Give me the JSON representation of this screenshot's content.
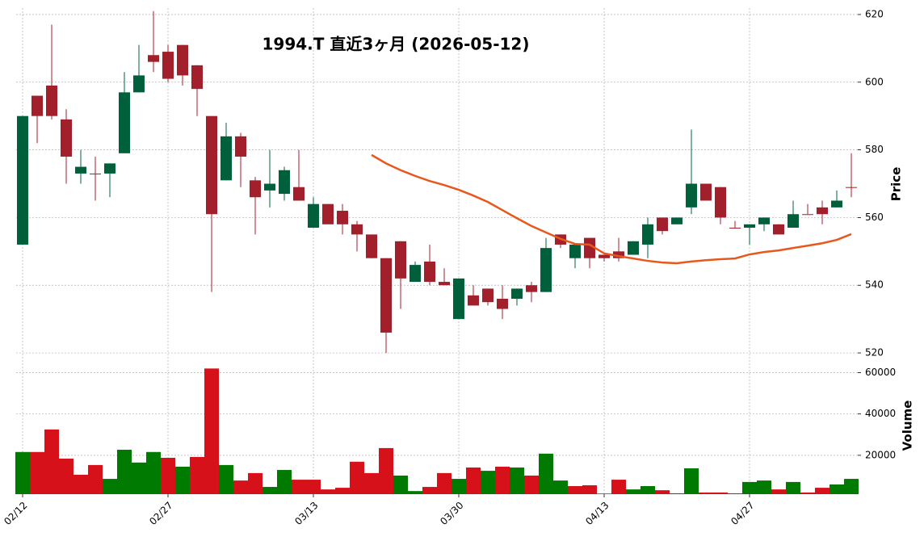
{
  "chart_data": [
    {
      "type": "candlestick",
      "title": "1994.T  直近3ヶ月  (2026-05-12)",
      "ylabel": "Price",
      "categories": [
        "02/12",
        null,
        null,
        null,
        null,
        null,
        null,
        null,
        null,
        null,
        "02/27",
        null,
        null,
        null,
        null,
        null,
        null,
        null,
        null,
        null,
        "03/13",
        null,
        null,
        null,
        null,
        null,
        null,
        null,
        null,
        null,
        "03/30",
        null,
        null,
        null,
        null,
        null,
        null,
        null,
        null,
        null,
        "04/13",
        null,
        null,
        null,
        null,
        null,
        null,
        null,
        null,
        null,
        "04/27",
        null,
        null,
        null,
        null,
        null,
        null,
        null
      ],
      "open": [
        552,
        596,
        599,
        589,
        573,
        573,
        573,
        579,
        597,
        608,
        609,
        611,
        605,
        590,
        571,
        584,
        571,
        568,
        567,
        569,
        557,
        564,
        562,
        558,
        555,
        548,
        553,
        541,
        547,
        541,
        530,
        537,
        539,
        536,
        536,
        540,
        538,
        555,
        548,
        554,
        549,
        550,
        549,
        552,
        560,
        558,
        563,
        570,
        569,
        557,
        557,
        558,
        558,
        557,
        561,
        563,
        563,
        569
      ],
      "high": [
        590,
        596,
        617,
        592,
        580,
        578,
        576,
        603,
        611,
        621,
        611,
        611,
        605,
        590,
        588,
        585,
        572,
        580,
        575,
        580,
        566,
        564,
        564,
        559,
        555,
        548,
        553,
        547,
        552,
        545,
        542,
        540,
        539,
        540,
        539,
        541,
        554,
        555,
        552,
        554,
        549,
        554,
        553,
        560,
        560,
        560,
        586,
        570,
        569,
        559,
        558,
        560,
        558,
        565,
        564,
        565,
        568,
        579
      ],
      "low": [
        552,
        582,
        589,
        570,
        570,
        565,
        566,
        579,
        597,
        603,
        600,
        599,
        590,
        538,
        571,
        569,
        555,
        563,
        565,
        565,
        557,
        558,
        555,
        550,
        548,
        520,
        533,
        541,
        540,
        540,
        530,
        534,
        534,
        530,
        534,
        535,
        538,
        551,
        545,
        545,
        547,
        547,
        549,
        548,
        555,
        558,
        561,
        565,
        558,
        557,
        552,
        556,
        555,
        557,
        561,
        558,
        563,
        566
      ],
      "close": [
        590,
        590,
        590,
        578,
        575,
        573,
        576,
        597,
        602,
        606,
        601,
        602,
        598,
        561,
        584,
        578,
        566,
        570,
        574,
        565,
        564,
        558,
        558,
        555,
        548,
        526,
        542,
        546,
        541,
        540,
        542,
        534,
        535,
        533,
        539,
        538,
        551,
        552,
        552,
        548,
        548,
        548,
        553,
        558,
        556,
        560,
        570,
        565,
        560,
        557,
        558,
        560,
        555,
        561,
        561,
        561,
        565,
        569
      ],
      "up_color": "#00603c",
      "down_color": "#a1202b",
      "ma": {
        "color": "#e8581c",
        "values": [
          null,
          null,
          null,
          null,
          null,
          null,
          null,
          null,
          null,
          null,
          null,
          null,
          null,
          null,
          null,
          null,
          null,
          null,
          null,
          null,
          null,
          null,
          null,
          null,
          578.5,
          576,
          574,
          572.3,
          570.8,
          569.6,
          568.2,
          566.5,
          564.6,
          562.2,
          559.8,
          557.5,
          555.6,
          553.7,
          552.2,
          552,
          549.4,
          548.6,
          547.9,
          547.2,
          546.7,
          546.5,
          547,
          547.4,
          547.7,
          547.9,
          549.1,
          549.8,
          550.3,
          551,
          551.7,
          552.4,
          553.4,
          555.1
        ]
      },
      "ylim": [
        519.3,
        621.9
      ],
      "yticks": [
        520,
        540,
        560,
        580,
        600,
        620
      ],
      "grid": true
    },
    {
      "type": "volume",
      "ylabel": "Volume",
      "values": [
        21600,
        21600,
        32500,
        18400,
        10600,
        15300,
        8600,
        22700,
        16500,
        21600,
        18800,
        14500,
        19200,
        62000,
        15300,
        7800,
        11400,
        4700,
        12900,
        8200,
        8200,
        3500,
        4300,
        16900,
        11400,
        23500,
        10200,
        2700,
        4700,
        11400,
        8600,
        14100,
        12500,
        14500,
        14100,
        10200,
        20800,
        7800,
        5100,
        5500,
        1500,
        8200,
        3500,
        5100,
        3100,
        1600,
        13700,
        2000,
        2000,
        1600,
        7100,
        7800,
        3500,
        7100,
        2000,
        4300,
        5900,
        8600
      ],
      "up_color": "#007a00",
      "down_color": "#d7111a",
      "ylim": [
        1200,
        68000
      ],
      "yticks": [
        20000,
        40000,
        60000
      ],
      "grid": true
    }
  ]
}
